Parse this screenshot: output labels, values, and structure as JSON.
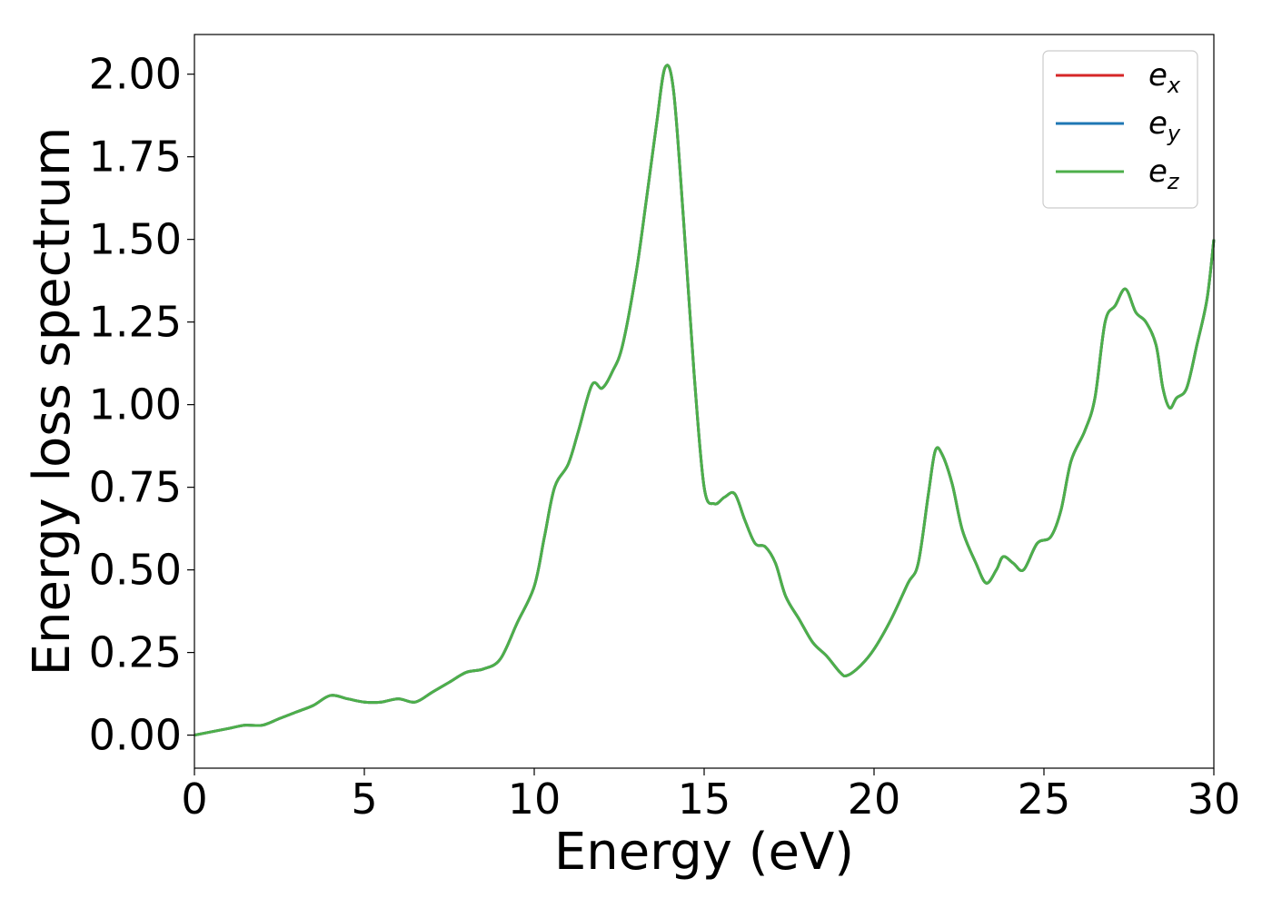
{
  "chart_data": {
    "type": "line",
    "title": "",
    "xlabel": "Energy (eV)",
    "ylabel": "Energy loss spectrum",
    "xlim": [
      0,
      30
    ],
    "ylim": [
      -0.1,
      2.12
    ],
    "xticks": [
      0,
      5,
      10,
      15,
      20,
      25,
      30
    ],
    "xtick_labels": [
      "0",
      "5",
      "10",
      "15",
      "20",
      "25",
      "30"
    ],
    "yticks": [
      0.0,
      0.25,
      0.5,
      0.75,
      1.0,
      1.25,
      1.5,
      1.75,
      2.0
    ],
    "ytick_labels": [
      "0.00",
      "0.25",
      "0.50",
      "0.75",
      "1.00",
      "1.25",
      "1.50",
      "1.75",
      "2.00"
    ],
    "grid": false,
    "legend_position": "top-right",
    "legend": [
      {
        "base": "e",
        "sub": "x",
        "color": "#d62728"
      },
      {
        "base": "e",
        "sub": "y",
        "color": "#1f77b4"
      },
      {
        "base": "e",
        "sub": "z",
        "color": "#4daf4a"
      }
    ],
    "x": [
      0,
      0.5,
      1,
      1.5,
      2,
      2.5,
      3,
      3.5,
      4,
      4.5,
      5,
      5.5,
      6,
      6.5,
      7,
      7.5,
      8,
      8.5,
      9,
      9.5,
      10,
      10.3,
      10.6,
      11,
      11.3,
      11.7,
      12,
      12.3,
      12.6,
      13,
      13.3,
      13.6,
      13.85,
      14.1,
      14.4,
      14.7,
      15,
      15.3,
      15.6,
      15.9,
      16.2,
      16.5,
      16.8,
      17.1,
      17.4,
      17.8,
      18.2,
      18.6,
      19,
      19.2,
      19.6,
      20,
      20.5,
      21,
      21.3,
      21.6,
      21.8,
      22,
      22.3,
      22.6,
      23,
      23.3,
      23.6,
      23.8,
      24.1,
      24.4,
      24.8,
      25.2,
      25.5,
      25.8,
      26.2,
      26.5,
      26.8,
      27.1,
      27.4,
      27.7,
      28,
      28.3,
      28.5,
      28.7,
      28.9,
      29.2,
      29.5,
      29.8,
      30
    ],
    "series": [
      {
        "values": [
          0.0,
          0.01,
          0.02,
          0.03,
          0.03,
          0.05,
          0.07,
          0.09,
          0.12,
          0.11,
          0.1,
          0.1,
          0.11,
          0.1,
          0.13,
          0.16,
          0.19,
          0.2,
          0.23,
          0.34,
          0.45,
          0.6,
          0.75,
          0.82,
          0.92,
          1.06,
          1.05,
          1.1,
          1.18,
          1.4,
          1.62,
          1.85,
          2.02,
          1.95,
          1.55,
          1.1,
          0.75,
          0.7,
          0.72,
          0.73,
          0.65,
          0.58,
          0.57,
          0.52,
          0.42,
          0.35,
          0.28,
          0.24,
          0.19,
          0.18,
          0.21,
          0.26,
          0.35,
          0.46,
          0.52,
          0.73,
          0.86,
          0.85,
          0.76,
          0.62,
          0.52,
          0.46,
          0.5,
          0.54,
          0.52,
          0.5,
          0.58,
          0.6,
          0.68,
          0.83,
          0.92,
          1.02,
          1.25,
          1.3,
          1.35,
          1.28,
          1.25,
          1.18,
          1.05,
          0.99,
          1.02,
          1.05,
          1.18,
          1.32,
          1.5
        ]
      },
      {
        "values": [
          0.0,
          0.01,
          0.02,
          0.03,
          0.03,
          0.05,
          0.07,
          0.09,
          0.12,
          0.11,
          0.1,
          0.1,
          0.11,
          0.1,
          0.13,
          0.16,
          0.19,
          0.2,
          0.23,
          0.34,
          0.45,
          0.6,
          0.75,
          0.82,
          0.92,
          1.06,
          1.05,
          1.1,
          1.18,
          1.4,
          1.62,
          1.85,
          2.02,
          1.95,
          1.55,
          1.1,
          0.75,
          0.7,
          0.72,
          0.73,
          0.65,
          0.58,
          0.57,
          0.52,
          0.42,
          0.35,
          0.28,
          0.24,
          0.19,
          0.18,
          0.21,
          0.26,
          0.35,
          0.46,
          0.52,
          0.73,
          0.86,
          0.85,
          0.76,
          0.62,
          0.52,
          0.46,
          0.5,
          0.54,
          0.52,
          0.5,
          0.58,
          0.6,
          0.68,
          0.83,
          0.92,
          1.02,
          1.25,
          1.3,
          1.35,
          1.28,
          1.25,
          1.18,
          1.05,
          0.99,
          1.02,
          1.05,
          1.18,
          1.32,
          1.5
        ]
      },
      {
        "values": [
          0.0,
          0.01,
          0.02,
          0.03,
          0.03,
          0.05,
          0.07,
          0.09,
          0.12,
          0.11,
          0.1,
          0.1,
          0.11,
          0.1,
          0.13,
          0.16,
          0.19,
          0.2,
          0.23,
          0.34,
          0.45,
          0.6,
          0.75,
          0.82,
          0.92,
          1.06,
          1.05,
          1.1,
          1.18,
          1.4,
          1.62,
          1.85,
          2.02,
          1.95,
          1.55,
          1.1,
          0.75,
          0.7,
          0.72,
          0.73,
          0.65,
          0.58,
          0.57,
          0.52,
          0.42,
          0.35,
          0.28,
          0.24,
          0.19,
          0.18,
          0.21,
          0.26,
          0.35,
          0.46,
          0.52,
          0.73,
          0.86,
          0.85,
          0.76,
          0.62,
          0.52,
          0.46,
          0.5,
          0.54,
          0.52,
          0.5,
          0.58,
          0.6,
          0.68,
          0.83,
          0.92,
          1.02,
          1.25,
          1.3,
          1.35,
          1.28,
          1.25,
          1.18,
          1.05,
          0.99,
          1.02,
          1.05,
          1.18,
          1.32,
          1.5
        ]
      }
    ]
  }
}
